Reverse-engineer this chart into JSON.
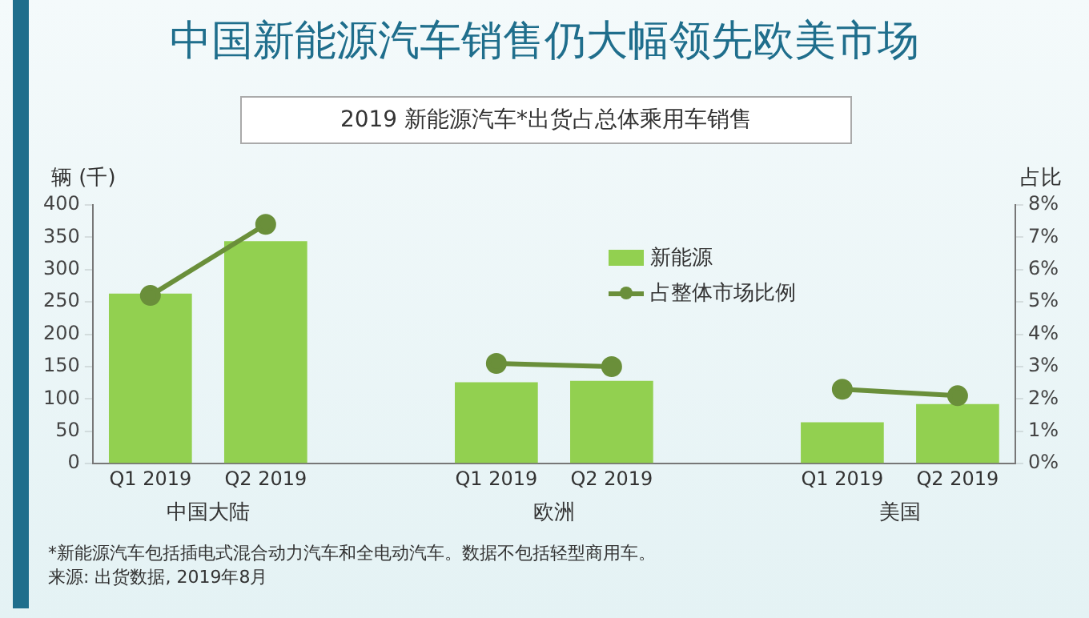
{
  "chart_data": {
    "type": "bar",
    "title": "中国新能源汽车销售仍大幅领先欧美市场",
    "subtitle": "2019 新能源汽车*出货占总体乘用车销售",
    "ylabel": "辆 (千)",
    "y2label": "占比",
    "categories": [
      "Q1 2019",
      "Q2 2019",
      null,
      "Q1 2019",
      "Q2 2019",
      null,
      "Q1 2019",
      "Q2 2019"
    ],
    "series": [
      {
        "name": "新能源",
        "color": "#92d050",
        "values": [
          263,
          344,
          null,
          126,
          128,
          null,
          64,
          92
        ]
      },
      {
        "name": "占整体市场比例",
        "type": "line",
        "axis": "y2",
        "color": "#6a8f3a",
        "values": [
          5.2,
          7.4,
          null,
          3.1,
          3.0,
          null,
          2.3,
          2.1
        ]
      }
    ],
    "ylim": [
      0,
      400
    ],
    "yticks": [
      0,
      50,
      100,
      150,
      200,
      250,
      300,
      350,
      400
    ],
    "y2lim": [
      0,
      8
    ],
    "y2ticks": [
      {
        "value": 0,
        "label": "0%"
      },
      {
        "value": 1,
        "label": "1%"
      },
      {
        "value": 2,
        "label": "2%"
      },
      {
        "value": 3,
        "label": "3%"
      },
      {
        "value": 4,
        "label": "4%"
      },
      {
        "value": 5,
        "label": "5%"
      },
      {
        "value": 6,
        "label": "6%"
      },
      {
        "value": 7,
        "label": "7%"
      },
      {
        "value": 8,
        "label": "8%"
      }
    ],
    "grid": false,
    "legend": "top right",
    "marker": "circle",
    "line_style": "solid",
    "annotations": [
      "中国大陆",
      "欧洲",
      "美国",
      "*新能源汽车包括插电式混合动力汽车和全电动汽车。数据不包括轻型商用车。",
      "来源: 出货数据, 2019年8月"
    ]
  }
}
